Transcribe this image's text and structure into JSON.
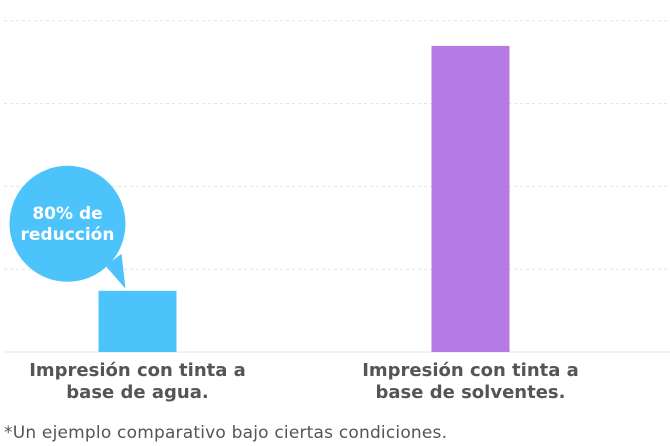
{
  "chart_data": {
    "type": "bar",
    "categories": [
      [
        "Impresión con tinta a",
        "base de agua."
      ],
      [
        "Impresión con tinta a",
        "base de solventes."
      ]
    ],
    "values": [
      20,
      100
    ],
    "colors": [
      "#4cc3fb",
      "#b57ae4"
    ],
    "ylim": [
      0,
      115
    ],
    "grid": true,
    "annotation": {
      "lines": [
        "80% de",
        "reducción"
      ],
      "color": "#4cc3fb",
      "target_category": 0
    }
  },
  "footnote": "*Un ejemplo comparativo bajo ciertas condiciones."
}
